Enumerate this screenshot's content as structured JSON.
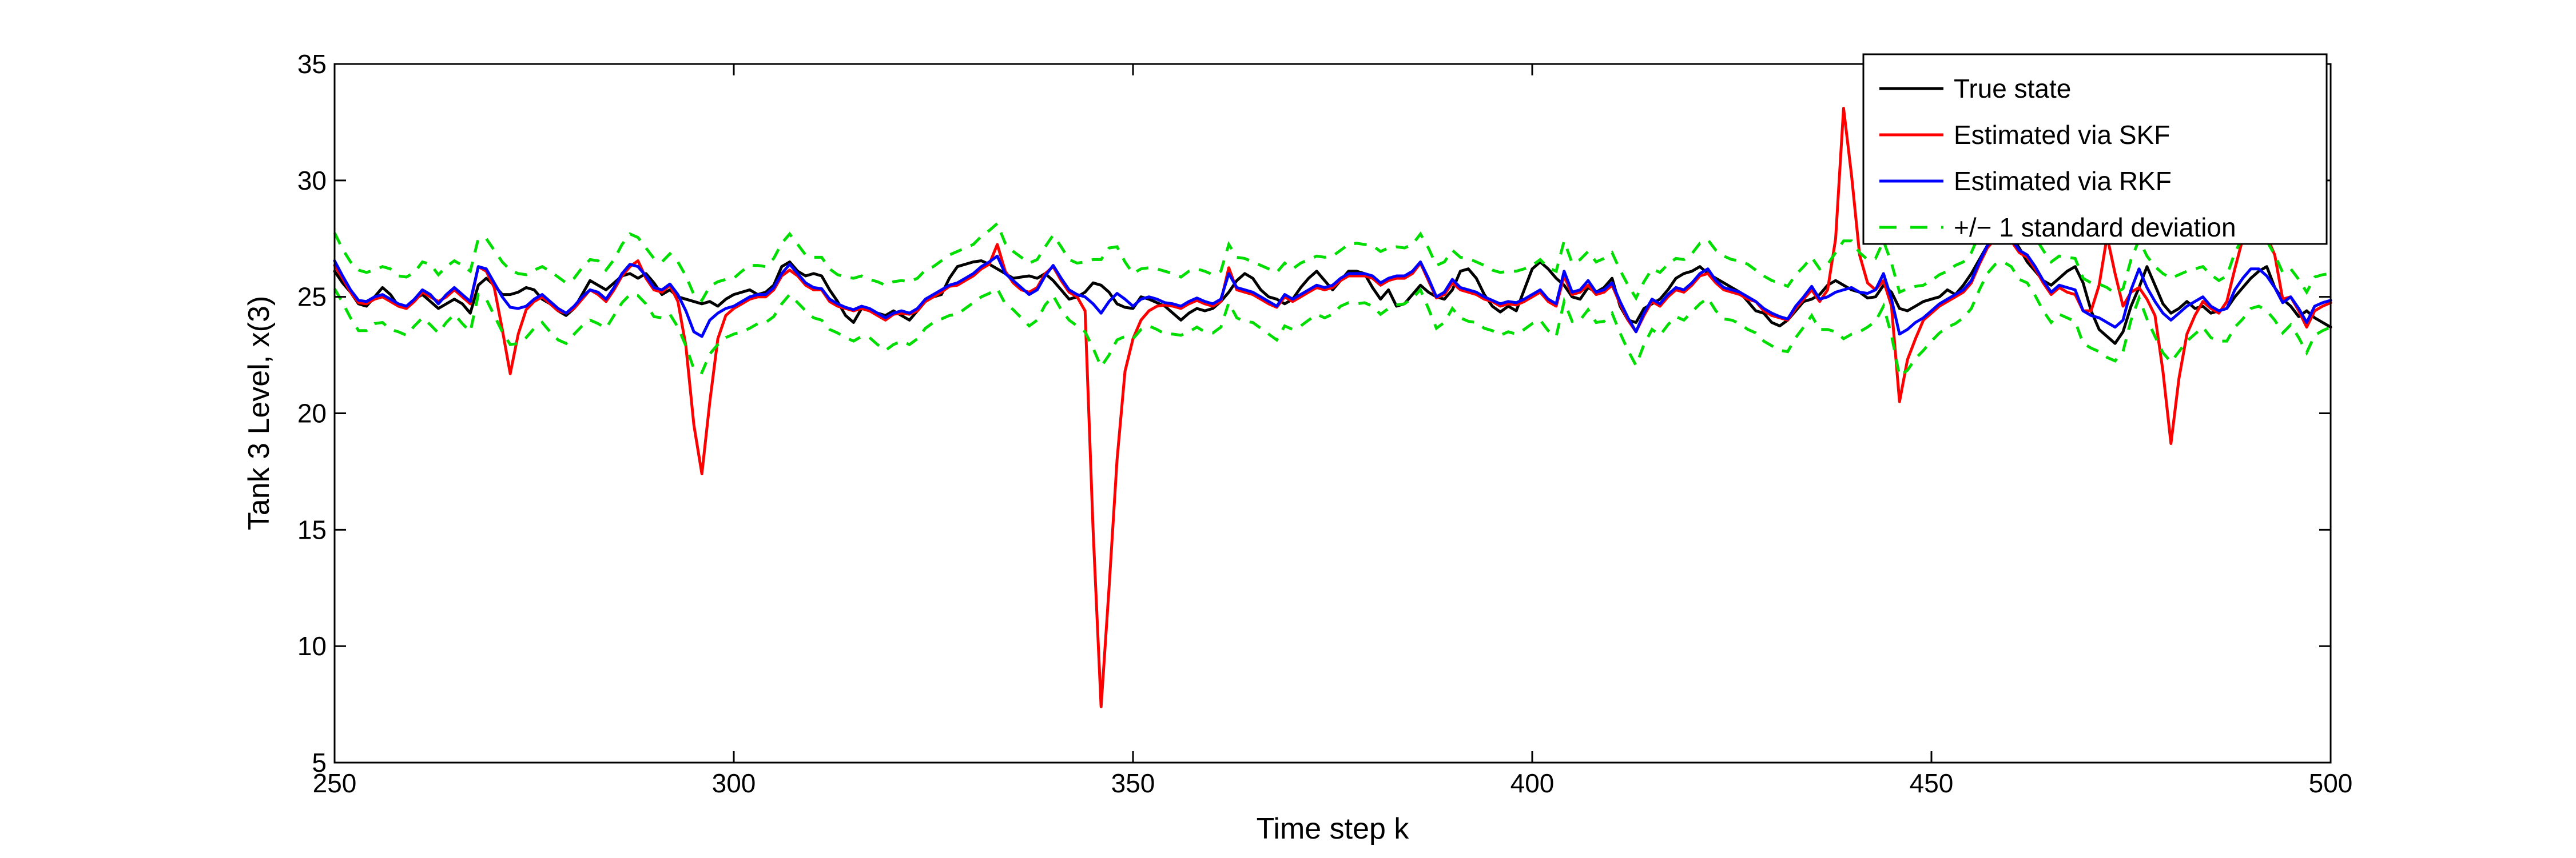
{
  "chart_data": {
    "type": "line",
    "title": "",
    "xlabel": "Time step k",
    "ylabel": "Tank 3 Level, x(3)",
    "xlim": [
      250,
      500
    ],
    "ylim": [
      5,
      35
    ],
    "xticks": [
      250,
      300,
      350,
      400,
      450,
      500
    ],
    "yticks": [
      5,
      10,
      15,
      20,
      25,
      30,
      35
    ],
    "grid": false,
    "legend_position": "top-right",
    "x_start": 250,
    "x_end": 500,
    "x_step": 1,
    "series": [
      {
        "name": "True state",
        "color": "#000000",
        "style": "solid",
        "values": [
          26.1,
          25.6,
          25.2,
          24.7,
          24.6,
          25.0,
          25.4,
          25.1,
          24.6,
          24.5,
          24.9,
          25.1,
          24.8,
          24.5,
          24.7,
          24.9,
          24.7,
          24.3,
          25.5,
          25.8,
          25.5,
          25.1,
          25.1,
          25.2,
          25.4,
          25.3,
          24.9,
          24.7,
          24.4,
          24.2,
          24.5,
          25.1,
          25.7,
          25.5,
          25.3,
          25.6,
          25.9,
          26.0,
          25.8,
          26.0,
          25.6,
          25.1,
          25.3,
          25.0,
          24.9,
          24.8,
          24.7,
          24.8,
          24.6,
          24.9,
          25.1,
          25.2,
          25.3,
          25.1,
          25.2,
          25.5,
          26.3,
          26.5,
          26.1,
          25.9,
          26.0,
          25.9,
          25.3,
          24.8,
          24.2,
          23.9,
          24.5,
          24.4,
          24.3,
          24.2,
          24.4,
          24.2,
          24.0,
          24.4,
          24.8,
          25.0,
          25.1,
          25.8,
          26.3,
          26.4,
          26.5,
          26.55,
          26.4,
          26.2,
          26.0,
          25.8,
          25.85,
          25.9,
          25.8,
          26.0,
          25.7,
          25.3,
          24.9,
          25.0,
          25.2,
          25.6,
          25.5,
          25.2,
          24.7,
          24.55,
          24.5,
          25.0,
          24.9,
          24.75,
          24.6,
          24.3,
          24.0,
          24.3,
          24.5,
          24.4,
          24.5,
          24.8,
          25.2,
          25.7,
          26.0,
          25.8,
          25.3,
          25.0,
          24.9,
          24.7,
          24.9,
          25.4,
          25.8,
          26.1,
          25.7,
          25.3,
          25.7,
          26.1,
          26.1,
          26.0,
          25.4,
          24.9,
          25.3,
          24.6,
          24.7,
          25.1,
          25.5,
          25.2,
          25.0,
          24.9,
          25.3,
          26.1,
          26.2,
          25.8,
          25.1,
          24.6,
          24.35,
          24.6,
          24.4,
          25.3,
          26.2,
          26.5,
          26.2,
          25.8,
          25.5,
          25.0,
          24.9,
          25.4,
          25.2,
          25.4,
          25.8,
          24.6,
          24.0,
          23.9,
          24.5,
          24.7,
          24.9,
          25.3,
          25.8,
          26.0,
          26.1,
          26.3,
          26.0,
          25.8,
          25.6,
          25.4,
          25.2,
          24.8,
          24.4,
          24.3,
          23.9,
          23.75,
          24.0,
          24.4,
          24.8,
          24.9,
          25.1,
          25.5,
          25.7,
          25.5,
          25.3,
          25.2,
          24.95,
          25.0,
          25.5,
          25.2,
          24.5,
          24.4,
          24.6,
          24.8,
          24.9,
          25.0,
          25.3,
          25.1,
          25.5,
          26.0,
          26.6,
          27.2,
          27.7,
          27.8,
          27.6,
          27.1,
          26.5,
          26.1,
          25.7,
          25.5,
          25.8,
          26.1,
          26.3,
          25.6,
          24.4,
          23.6,
          23.3,
          23.0,
          23.5,
          24.6,
          25.4,
          26.3,
          25.5,
          24.7,
          24.3,
          24.5,
          24.8,
          24.5,
          24.6,
          24.3,
          24.4,
          24.5,
          25.0,
          25.4,
          25.8,
          26.1,
          26.3,
          25.4,
          24.9,
          24.6,
          24.15,
          24.4,
          24.1,
          23.9,
          23.7
        ]
      },
      {
        "name": "Estimated via SKF",
        "color": "#ff0000",
        "style": "solid",
        "values": [
          26.35,
          25.8,
          25.2,
          24.75,
          24.7,
          24.9,
          25.0,
          24.8,
          24.6,
          24.5,
          24.8,
          25.2,
          25.0,
          24.8,
          25.0,
          25.3,
          25.0,
          24.7,
          26.3,
          26.1,
          25.4,
          23.6,
          21.7,
          23.4,
          24.45,
          24.8,
          25.0,
          24.7,
          24.4,
          24.3,
          24.5,
          24.9,
          25.3,
          25.1,
          24.8,
          25.3,
          25.9,
          26.3,
          26.55,
          25.8,
          25.3,
          25.2,
          25.5,
          24.8,
          22.9,
          19.5,
          17.4,
          20.5,
          23.2,
          24.2,
          24.5,
          24.7,
          24.9,
          25.0,
          25.0,
          25.3,
          25.9,
          26.15,
          25.9,
          25.5,
          25.3,
          25.3,
          24.8,
          24.6,
          24.5,
          24.4,
          24.5,
          24.4,
          24.2,
          24.0,
          24.25,
          24.3,
          24.25,
          24.4,
          24.8,
          25.0,
          25.2,
          25.45,
          25.5,
          25.7,
          25.9,
          26.2,
          26.4,
          27.25,
          26.1,
          25.6,
          25.3,
          25.2,
          25.4,
          26.0,
          26.3,
          25.7,
          25.2,
          25.0,
          24.4,
          15.0,
          7.4,
          12.5,
          18.0,
          21.8,
          23.2,
          24.0,
          24.4,
          24.6,
          24.65,
          24.6,
          24.5,
          24.7,
          24.85,
          24.7,
          24.6,
          24.8,
          26.25,
          25.3,
          25.2,
          25.1,
          24.9,
          24.7,
          24.55,
          25.0,
          24.8,
          25.0,
          25.2,
          25.4,
          25.3,
          25.4,
          25.7,
          25.9,
          25.9,
          25.9,
          25.8,
          25.5,
          25.7,
          25.8,
          25.8,
          26.0,
          26.45,
          25.7,
          24.95,
          25.1,
          25.6,
          25.3,
          25.2,
          25.1,
          24.9,
          24.8,
          24.6,
          24.7,
          24.65,
          24.8,
          25.0,
          25.2,
          24.8,
          24.6,
          25.9,
          25.1,
          25.2,
          25.5,
          25.1,
          25.2,
          25.5,
          24.7,
          24.0,
          23.5,
          24.2,
          24.8,
          24.6,
          25.0,
          25.3,
          25.2,
          25.5,
          25.9,
          26.0,
          25.6,
          25.3,
          25.2,
          25.1,
          24.9,
          24.8,
          24.4,
          24.2,
          24.1,
          24.0,
          24.5,
          24.9,
          25.3,
          24.8,
          25.3,
          27.5,
          33.1,
          30.2,
          26.8,
          25.6,
          25.3,
          25.7,
          24.6,
          20.5,
          22.3,
          23.2,
          24.0,
          24.3,
          24.6,
          24.8,
          25.0,
          25.2,
          25.6,
          26.4,
          27.1,
          27.5,
          27.6,
          27.4,
          26.9,
          26.7,
          26.2,
          25.6,
          25.1,
          25.4,
          25.2,
          25.1,
          24.4,
          24.4,
          25.5,
          27.6,
          26.0,
          24.6,
          25.2,
          25.4,
          24.9,
          24.2,
          21.8,
          18.7,
          21.5,
          23.4,
          24.2,
          24.8,
          24.5,
          24.3,
          24.8,
          26.2,
          27.5,
          27.8,
          27.8,
          27.6,
          26.8,
          24.9,
          25.0,
          24.4,
          23.7,
          24.4,
          24.6,
          24.75
        ]
      },
      {
        "name": "Estimated via RKF",
        "color": "#0000ff",
        "style": "solid",
        "values": [
          26.55,
          25.9,
          25.3,
          24.85,
          24.8,
          25.0,
          25.1,
          24.9,
          24.7,
          24.6,
          24.9,
          25.3,
          25.1,
          24.7,
          25.1,
          25.4,
          25.1,
          24.8,
          26.3,
          26.2,
          25.6,
          25.0,
          24.55,
          24.5,
          24.6,
          24.9,
          25.1,
          24.8,
          24.5,
          24.3,
          24.6,
          25.0,
          25.3,
          25.2,
          24.9,
          25.4,
          26.0,
          26.4,
          26.3,
          25.9,
          25.4,
          25.3,
          25.55,
          25.1,
          24.4,
          23.5,
          23.3,
          24.0,
          24.3,
          24.5,
          24.6,
          24.8,
          25.0,
          25.1,
          25.1,
          25.4,
          26.0,
          26.4,
          26.0,
          25.6,
          25.4,
          25.35,
          24.9,
          24.7,
          24.55,
          24.45,
          24.6,
          24.5,
          24.3,
          24.1,
          24.3,
          24.4,
          24.3,
          24.5,
          24.9,
          25.1,
          25.3,
          25.5,
          25.6,
          25.8,
          26.0,
          26.3,
          26.5,
          26.75,
          26.0,
          25.7,
          25.4,
          25.1,
          25.3,
          25.9,
          26.35,
          25.8,
          25.3,
          25.1,
          25.0,
          24.7,
          24.3,
          24.8,
          25.15,
          24.9,
          24.6,
          24.9,
          25.0,
          24.9,
          24.75,
          24.7,
          24.6,
          24.8,
          24.95,
          24.8,
          24.7,
          24.9,
          26.0,
          25.4,
          25.3,
          25.2,
          25.0,
          24.8,
          24.6,
          25.1,
          24.9,
          25.1,
          25.3,
          25.5,
          25.4,
          25.5,
          25.8,
          26.0,
          26.0,
          26.0,
          25.9,
          25.6,
          25.8,
          25.9,
          25.9,
          26.1,
          26.5,
          25.8,
          25.0,
          25.2,
          25.75,
          25.4,
          25.3,
          25.2,
          25.0,
          24.85,
          24.7,
          24.8,
          24.75,
          24.9,
          25.1,
          25.3,
          24.9,
          24.7,
          26.1,
          25.2,
          25.3,
          25.7,
          25.2,
          25.3,
          25.6,
          24.8,
          24.1,
          23.5,
          24.3,
          24.9,
          24.7,
          25.1,
          25.4,
          25.3,
          25.6,
          26.0,
          26.2,
          25.7,
          25.4,
          25.3,
          25.2,
          25.0,
          24.8,
          24.5,
          24.3,
          24.15,
          24.05,
          24.6,
          25.0,
          25.45,
          24.9,
          25.0,
          25.2,
          25.3,
          25.4,
          25.2,
          25.15,
          25.3,
          26.0,
          24.9,
          23.4,
          23.6,
          23.9,
          24.1,
          24.4,
          24.7,
          24.9,
          25.1,
          25.3,
          25.7,
          26.5,
          27.2,
          27.6,
          27.7,
          27.5,
          27.0,
          26.8,
          26.3,
          25.7,
          25.2,
          25.5,
          25.4,
          25.3,
          24.4,
          24.2,
          24.1,
          23.9,
          23.7,
          24.0,
          25.3,
          26.2,
          25.4,
          24.8,
          24.3,
          24.0,
          24.3,
          24.6,
          24.8,
          25.0,
          24.6,
          24.4,
          24.5,
          25.3,
          25.8,
          26.2,
          26.2,
          25.9,
          25.4,
          24.75,
          25.0,
          24.5,
          23.9,
          24.6,
          24.75,
          24.85
        ]
      },
      {
        "name": "+/− 1 standard deviation",
        "color": "#00dd00",
        "style": "dashed",
        "band_of": "Estimated via RKF",
        "sd": [
          1.2,
          1.15,
          1.2,
          1.3,
          1.25,
          1.15,
          1.2,
          1.3,
          1.2,
          1.25,
          1.15,
          1.2,
          1.3,
          1.25,
          1.2,
          1.15,
          1.25,
          1.3,
          1.2,
          1.3,
          1.4,
          1.5,
          1.6,
          1.5,
          1.35,
          1.25,
          1.2,
          1.3,
          1.35,
          1.3,
          1.2,
          1.25,
          1.3,
          1.35,
          1.25,
          1.2,
          1.25,
          1.3,
          1.25,
          1.2,
          1.25,
          1.2,
          1.3,
          1.4,
          1.5,
          1.6,
          1.55,
          1.45,
          1.35,
          1.25,
          1.2,
          1.3,
          1.35,
          1.25,
          1.2,
          1.25,
          1.3,
          1.3,
          1.25,
          1.2,
          1.3,
          1.35,
          1.3,
          1.25,
          1.3,
          1.35,
          1.3,
          1.25,
          1.35,
          1.4,
          1.35,
          1.3,
          1.35,
          1.3,
          1.25,
          1.2,
          1.25,
          1.3,
          1.35,
          1.3,
          1.25,
          1.3,
          1.35,
          1.4,
          1.3,
          1.25,
          1.3,
          1.35,
          1.3,
          1.25,
          1.3,
          1.35,
          1.3,
          1.35,
          1.5,
          1.9,
          2.3,
          2.3,
          2.0,
          1.6,
          1.4,
          1.3,
          1.25,
          1.3,
          1.35,
          1.3,
          1.25,
          1.3,
          1.25,
          1.3,
          1.25,
          1.2,
          1.25,
          1.3,
          1.35,
          1.3,
          1.35,
          1.4,
          1.45,
          1.35,
          1.3,
          1.35,
          1.3,
          1.25,
          1.3,
          1.25,
          1.2,
          1.25,
          1.3,
          1.25,
          1.3,
          1.35,
          1.3,
          1.25,
          1.2,
          1.15,
          1.2,
          1.3,
          1.35,
          1.3,
          1.25,
          1.3,
          1.35,
          1.3,
          1.35,
          1.3,
          1.35,
          1.3,
          1.35,
          1.3,
          1.25,
          1.3,
          1.35,
          1.4,
          1.3,
          1.25,
          1.3,
          1.25,
          1.3,
          1.35,
          1.3,
          1.35,
          1.4,
          1.45,
          1.35,
          1.3,
          1.35,
          1.3,
          1.25,
          1.3,
          1.25,
          1.3,
          1.25,
          1.3,
          1.35,
          1.3,
          1.35,
          1.4,
          1.35,
          1.4,
          1.4,
          1.45,
          1.4,
          1.35,
          1.3,
          1.25,
          1.3,
          1.4,
          1.7,
          2.1,
          2.0,
          1.7,
          1.45,
          1.35,
          1.4,
          1.55,
          1.8,
          1.75,
          1.55,
          1.4,
          1.3,
          1.25,
          1.2,
          1.25,
          1.2,
          1.2,
          1.2,
          1.2,
          1.2,
          1.2,
          1.2,
          1.25,
          1.2,
          1.25,
          1.3,
          1.3,
          1.25,
          1.3,
          1.35,
          1.4,
          1.4,
          1.45,
          1.5,
          1.45,
          1.35,
          1.3,
          1.25,
          1.35,
          1.5,
          1.7,
          1.8,
          1.65,
          1.5,
          1.4,
          1.3,
          1.35,
          1.3,
          1.4,
          1.6,
          1.75,
          1.7,
          1.6,
          1.5,
          1.4,
          1.3,
          1.2,
          1.25,
          1.3,
          1.25,
          1.2,
          1.15
        ]
      }
    ],
    "legend": {
      "entries": [
        "True state",
        "Estimated via SKF",
        "Estimated via RKF",
        "+/− 1 standard deviation"
      ]
    }
  }
}
